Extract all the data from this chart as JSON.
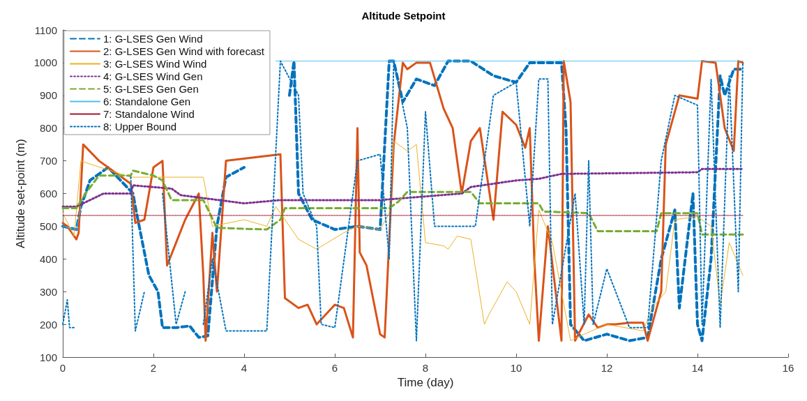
{
  "chart_data": {
    "type": "line",
    "title": "Altitude Setpoint",
    "xlabel": "Time (day)",
    "ylabel": "Altitude set-point (m)",
    "xlim": [
      0,
      16
    ],
    "xticks": [
      0,
      2,
      4,
      6,
      8,
      10,
      12,
      14,
      16
    ],
    "ylim": [
      100,
      1100
    ],
    "yticks": [
      100,
      200,
      300,
      400,
      500,
      600,
      700,
      800,
      900,
      1000,
      1100
    ],
    "grid": false,
    "legend": "top left",
    "marker": "none",
    "series": [
      {
        "name": "1: G-LSES Gen Wind",
        "color": "#0072bd",
        "line_style": "dashed",
        "x": [
          0,
          0.3,
          0.4,
          0.6,
          1.0,
          1.55,
          1.6,
          1.9,
          2.1,
          2.2,
          2.5,
          2.8,
          3.0,
          3.2,
          3.4,
          3.6,
          4.0,
          4.5,
          5.0,
          5.1,
          5.2,
          5.5,
          6.0,
          6.5,
          7.0,
          7.2,
          7.3,
          7.5,
          7.8,
          8.2,
          8.5,
          9.0,
          9.5,
          10.0,
          10.3,
          11.0,
          11.1,
          11.2,
          11.5,
          12.0,
          12.5,
          12.9,
          13.2,
          13.5,
          13.6,
          13.9,
          14.0,
          14.1,
          14.3,
          14.5,
          14.6,
          14.8,
          15.0
        ],
        "values": [
          500,
          490,
          560,
          640,
          680,
          600,
          560,
          350,
          300,
          190,
          190,
          195,
          160,
          165,
          500,
          650,
          680,
          null,
          900,
          1005,
          600,
          520,
          490,
          500,
          490,
          1005,
          1005,
          880,
          950,
          930,
          1005,
          1005,
          960,
          940,
          1000,
          1000,
          800,
          200,
          150,
          170,
          150,
          160,
          400,
          550,
          250,
          600,
          200,
          150,
          400,
          960,
          900,
          980,
          980
        ]
      },
      {
        "name": "2: G-LSES Gen Wind with forecast",
        "color": "#d95319",
        "line_style": "solid",
        "x": [
          0,
          0.1,
          0.3,
          0.35,
          0.45,
          0.8,
          1.5,
          1.6,
          1.8,
          2.0,
          2.2,
          2.3,
          2.5,
          2.7,
          3.0,
          3.1,
          3.15,
          3.3,
          3.4,
          3.6,
          4.8,
          4.9,
          5.2,
          5.4,
          5.6,
          6.0,
          6.2,
          6.4,
          6.5,
          6.55,
          6.7,
          7.0,
          7.1,
          7.3,
          7.5,
          7.6,
          7.8,
          8.1,
          8.4,
          8.6,
          8.8,
          9.0,
          9.2,
          9.5,
          9.7,
          10.0,
          10.2,
          10.3,
          10.4,
          10.5,
          10.7,
          11.0,
          11.05,
          11.2,
          11.3,
          11.6,
          11.8,
          12.0,
          12.2,
          12.5,
          12.8,
          12.9,
          13.2,
          13.3,
          13.4,
          13.6,
          14.0,
          14.1,
          14.4,
          14.6,
          14.8,
          14.9,
          15.0
        ],
        "values": [
          510,
          500,
          460,
          480,
          750,
          700,
          630,
          510,
          520,
          680,
          700,
          380,
          450,
          520,
          600,
          350,
          150,
          480,
          300,
          700,
          720,
          280,
          250,
          260,
          200,
          260,
          250,
          160,
          800,
          420,
          380,
          170,
          160,
          750,
          1000,
          980,
          1000,
          1000,
          860,
          800,
          600,
          760,
          800,
          520,
          850,
          810,
          740,
          800,
          400,
          150,
          500,
          150,
          1005,
          880,
          150,
          230,
          190,
          200,
          200,
          205,
          205,
          150,
          300,
          750,
          800,
          900,
          890,
          1005,
          1000,
          800,
          730,
          1005,
          1000
        ]
      },
      {
        "name": "3: G-LSES Wind Wind",
        "color": "#edb120",
        "line_style": "solid",
        "x": [
          0,
          0.25,
          0.4,
          0.6,
          1.5,
          3.1,
          3.3,
          4.0,
          4.5,
          4.7,
          5.0,
          5.2,
          5.6,
          6.2,
          6.5,
          7.0,
          7.2,
          7.3,
          7.6,
          7.8,
          8.0,
          8.4,
          8.5,
          8.7,
          9.0,
          9.3,
          9.4,
          9.8,
          10.0,
          10.3,
          10.5,
          10.8,
          11.0,
          11.2,
          11.5,
          12.0,
          12.8,
          13.0,
          13.3,
          13.5,
          14.0,
          14.3,
          14.5,
          14.7,
          15.0
        ],
        "values": [
          540,
          470,
          700,
          690,
          650,
          650,
          500,
          520,
          500,
          560,
          500,
          460,
          430,
          480,
          500,
          490,
          540,
          760,
          730,
          750,
          450,
          440,
          430,
          470,
          460,
          200,
          230,
          330,
          300,
          200,
          550,
          450,
          300,
          150,
          170,
          200,
          180,
          250,
          300,
          520,
          530,
          500,
          260,
          450,
          350
        ]
      },
      {
        "name": "4: G-LSES Wind Gen",
        "color": "#7e2f8e",
        "line_style": "dotted",
        "x": [
          0,
          0.3,
          0.9,
          1.5,
          1.55,
          2.4,
          2.6,
          4.0,
          4.8,
          7.0,
          8.8,
          9.0,
          10.0,
          10.5,
          11.0,
          14.0,
          14.1,
          15.0
        ],
        "values": [
          560,
          560,
          600,
          600,
          625,
          615,
          595,
          570,
          580,
          580,
          600,
          620,
          640,
          645,
          660,
          665,
          675,
          675
        ]
      },
      {
        "name": "5: G-LSES Gen Gen",
        "color": "#77ac30",
        "line_style": "dashed",
        "x": [
          0,
          0.3,
          0.5,
          0.8,
          1.5,
          1.55,
          2.0,
          2.2,
          2.4,
          3.1,
          3.4,
          4.5,
          4.8,
          4.9,
          7.2,
          7.4,
          7.6,
          9.0,
          9.2,
          10.5,
          10.6,
          11.6,
          11.8,
          12.8,
          13.1,
          13.2,
          14.0,
          14.1,
          15.0
        ],
        "values": [
          555,
          555,
          600,
          655,
          655,
          670,
          655,
          640,
          580,
          580,
          495,
          490,
          520,
          555,
          555,
          575,
          605,
          605,
          570,
          570,
          545,
          540,
          485,
          485,
          485,
          540,
          540,
          475,
          475
        ]
      },
      {
        "name": "6: Standalone Gen",
        "color": "#4dbeee",
        "line_style": "dashed",
        "x": [
          0,
          0.3,
          0.4,
          0.6,
          4.7,
          15.0
        ],
        "values": [
          500,
          490,
          560,
          null,
          1005,
          1005
        ]
      },
      {
        "name": "7: Standalone Wind",
        "color": "#a2142f",
        "line_style": "dashed",
        "x": [
          0,
          15.0
        ],
        "values": [
          533,
          533
        ]
      },
      {
        "name": "8: Upper Bound",
        "color": "#0072bd",
        "line_style": "dotted",
        "x": [
          0,
          0.1,
          0.15,
          0.25,
          0.3,
          1.5,
          1.6,
          1.8,
          2.0,
          2.2,
          2.5,
          2.7,
          3.0,
          3.1,
          3.3,
          3.6,
          4.0,
          4.5,
          4.8,
          5.2,
          5.3,
          5.6,
          5.7,
          6.0,
          6.5,
          7.0,
          7.2,
          7.3,
          7.6,
          7.8,
          8.0,
          8.2,
          9.1,
          9.3,
          9.5,
          10.0,
          10.3,
          10.5,
          10.7,
          10.8,
          11.3,
          11.5,
          11.6,
          11.7,
          12.0,
          12.5,
          12.9,
          13.2,
          13.5,
          14.0,
          14.1,
          14.3,
          14.5,
          14.7,
          14.9,
          15.0
        ],
        "values": [
          200,
          275,
          190,
          190,
          null,
          650,
          180,
          300,
          null,
          600,
          200,
          300,
          null,
          200,
          400,
          180,
          180,
          180,
          1005,
          900,
          600,
          500,
          200,
          190,
          700,
          720,
          400,
          1005,
          800,
          150,
          850,
          500,
          500,
          700,
          900,
          940,
          500,
          950,
          950,
          200,
          600,
          200,
          700,
          200,
          370,
          190,
          190,
          700,
          900,
          870,
          200,
          950,
          190,
          960,
          300,
          1000
        ]
      }
    ]
  }
}
